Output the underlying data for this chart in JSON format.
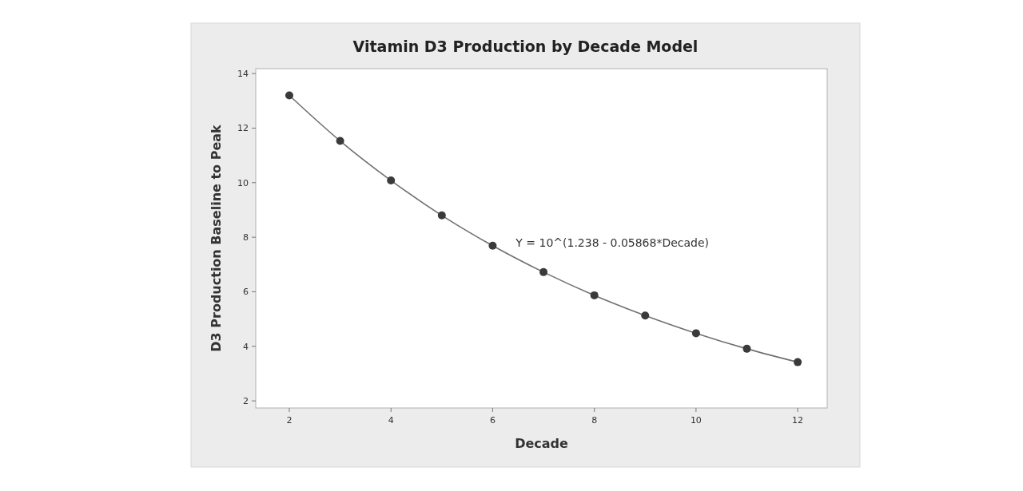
{
  "chart_data": {
    "type": "scatter",
    "title": "Vitamin D3 Production by Decade Model",
    "xlabel": "Decade",
    "ylabel": "D3 Production Baseline to Peak",
    "x": [
      2,
      3,
      4,
      5,
      6,
      7,
      8,
      9,
      10,
      11,
      12
    ],
    "series": [
      {
        "color": "#3a3a3a",
        "marker": "circle",
        "values": [
          13.2,
          11.53,
          10.08,
          8.8,
          7.69,
          6.72,
          5.87,
          5.13,
          4.48,
          3.91,
          3.42
        ]
      },
      {
        "type": "line",
        "marker": "none",
        "color": "#707070",
        "x": [
          2,
          3,
          4,
          5,
          6,
          7,
          8,
          9,
          10,
          11,
          12
        ],
        "values": [
          13.2,
          11.53,
          10.08,
          8.8,
          7.69,
          6.72,
          5.87,
          5.13,
          4.48,
          3.91,
          3.42
        ]
      }
    ],
    "annotations": [
      "Y = 10^(1.238 - 0.05868*Decade)"
    ],
    "xlim": [
      1.34,
      12.58
    ],
    "xticks": [
      2,
      4,
      6,
      8,
      10,
      12
    ],
    "ylim": [
      1.74,
      14.18
    ],
    "yticks": [
      2,
      4,
      6,
      8,
      10,
      12,
      14
    ],
    "line_style": "solid",
    "grid": false
  }
}
